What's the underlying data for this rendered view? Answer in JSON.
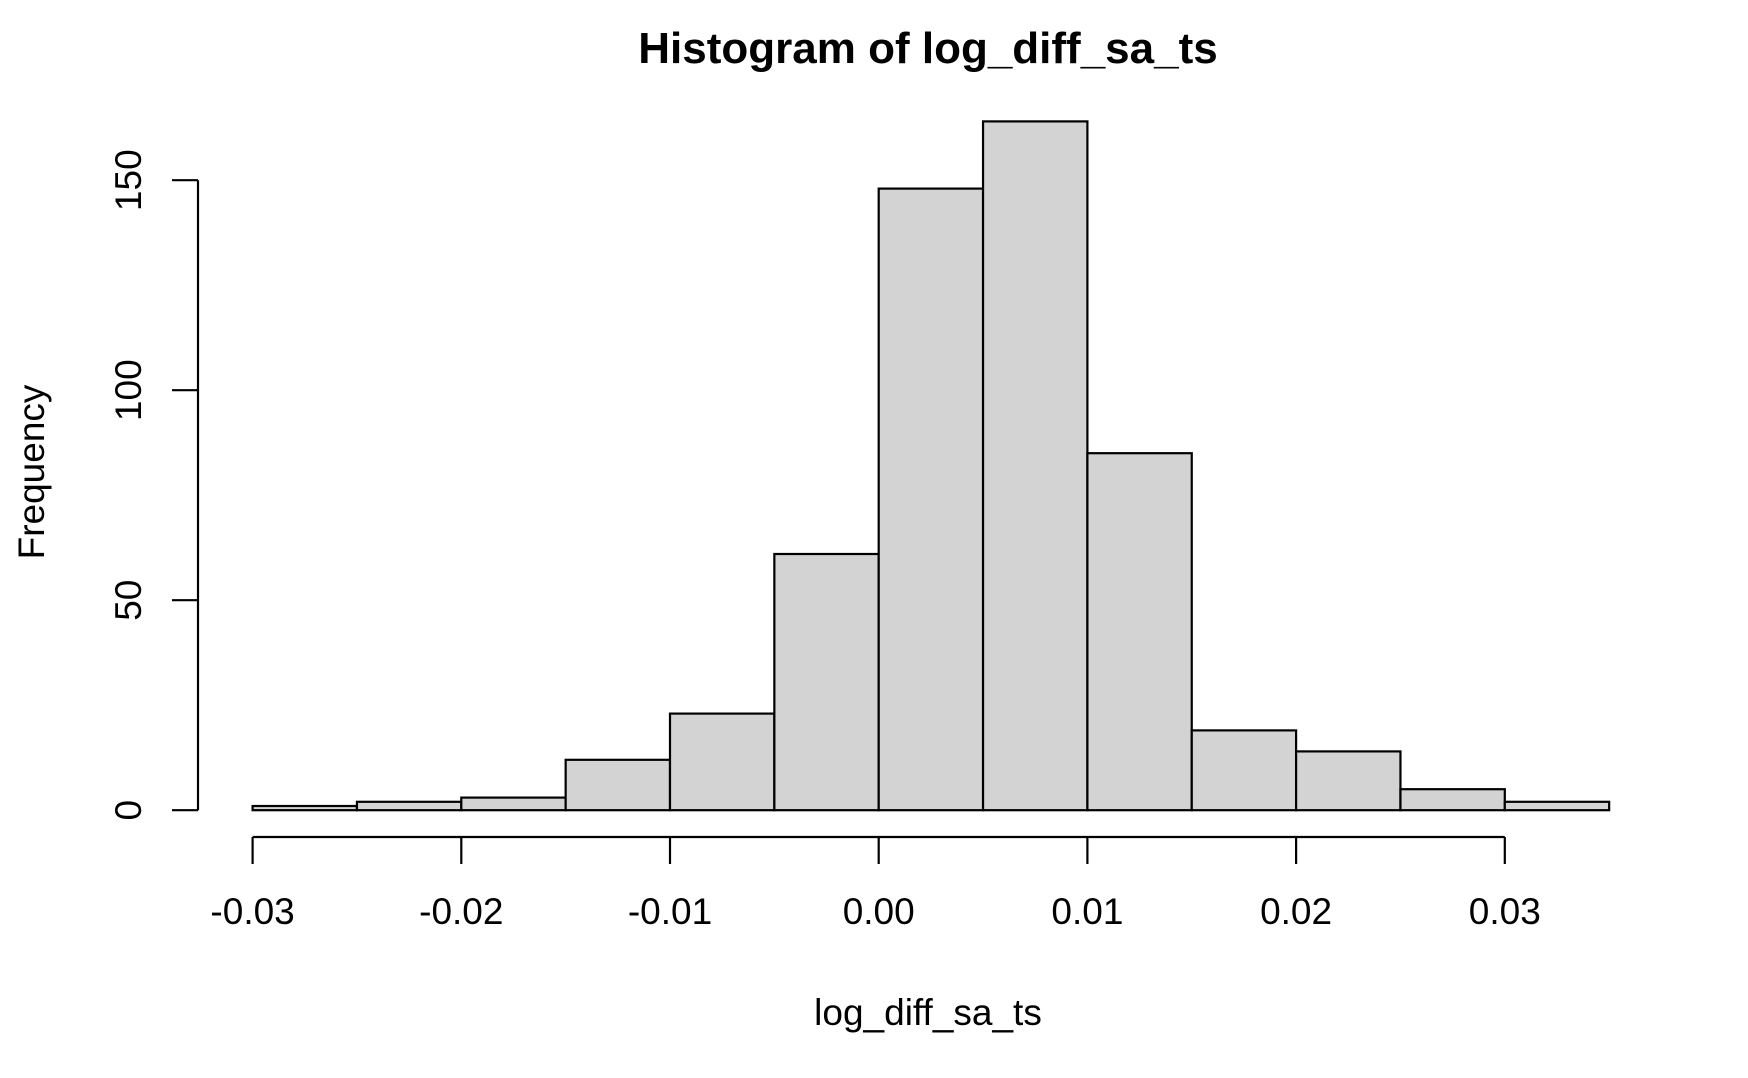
{
  "chart_data": {
    "type": "bar",
    "title": "Histogram of log_diff_sa_ts",
    "xlabel": "log_diff_sa_ts",
    "ylabel": "Frequency",
    "bins": [
      {
        "x0": -0.03,
        "x1": -0.025,
        "count": 1
      },
      {
        "x0": -0.025,
        "x1": -0.02,
        "count": 2
      },
      {
        "x0": -0.02,
        "x1": -0.015,
        "count": 3
      },
      {
        "x0": -0.015,
        "x1": -0.01,
        "count": 12
      },
      {
        "x0": -0.01,
        "x1": -0.005,
        "count": 23
      },
      {
        "x0": -0.005,
        "x1": 0.0,
        "count": 61
      },
      {
        "x0": 0.0,
        "x1": 0.005,
        "count": 148
      },
      {
        "x0": 0.005,
        "x1": 0.01,
        "count": 164
      },
      {
        "x0": 0.01,
        "x1": 0.015,
        "count": 85
      },
      {
        "x0": 0.015,
        "x1": 0.02,
        "count": 19
      },
      {
        "x0": 0.02,
        "x1": 0.025,
        "count": 14
      },
      {
        "x0": 0.025,
        "x1": 0.03,
        "count": 5
      },
      {
        "x0": 0.03,
        "x1": 0.035,
        "count": 2
      }
    ],
    "xticks": [
      -0.03,
      -0.02,
      -0.01,
      0.0,
      0.01,
      0.02,
      0.03
    ],
    "xtick_labels": [
      "-0.03",
      "-0.02",
      "-0.01",
      "0.00",
      "0.01",
      "0.02",
      "0.03"
    ],
    "yticks": [
      0,
      50,
      100,
      150
    ],
    "ytick_labels": [
      "0",
      "50",
      "100",
      "150"
    ],
    "xlim": [
      -0.03,
      0.035
    ],
    "ylim": [
      0,
      164
    ],
    "grid": false,
    "legend": "none",
    "colors": {
      "bar_fill": "#d3d3d3",
      "bar_stroke": "#000000",
      "axis": "#000000",
      "background": "#ffffff"
    }
  }
}
